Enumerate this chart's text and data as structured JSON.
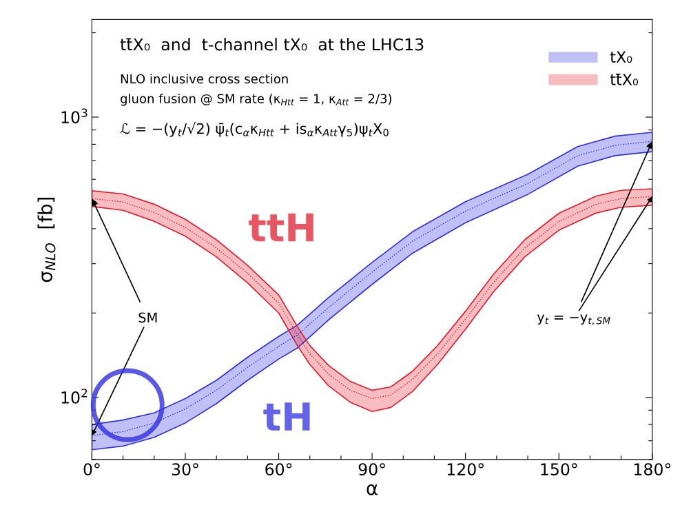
{
  "chart_data": {
    "type": "line",
    "title": "tt̄X₀  and  t-channel tX₀  at the LHC13",
    "xlabel": "α",
    "ylabel": "σ$_{NLO}$  [fb]",
    "series": [
      {
        "name": "tX₀",
        "color": "#3030e0",
        "line_style": "dotted",
        "x": [
          0,
          10,
          20,
          30,
          40,
          50,
          60,
          66,
          76,
          90,
          103,
          120,
          140,
          156,
          168,
          180
        ],
        "values": [
          73,
          75.5,
          81,
          91,
          106,
          128,
          152,
          167,
          209,
          280,
          361,
          462,
          580,
          728,
          793,
          820
        ],
        "upper": [
          80,
          83,
          88,
          99,
          115,
          139,
          165,
          181,
          227,
          303,
          390,
          499,
          625,
          785,
          855,
          883
        ],
        "lower": [
          65,
          67,
          72,
          81,
          95,
          115,
          137,
          150,
          189,
          253,
          327,
          420,
          530,
          668,
          729,
          753
        ]
      },
      {
        "name": "tt̄X₀",
        "color": "#e02030",
        "line_style": "dotted",
        "x": [
          0,
          10,
          20,
          30,
          40,
          50,
          60,
          66,
          70,
          76,
          83,
          90,
          96,
          103,
          111,
          120,
          129,
          139,
          150,
          162,
          170,
          180
        ],
        "values": [
          512,
          498,
          457,
          404,
          341,
          277,
          217,
          167,
          143,
          121,
          106,
          99,
          102,
          116,
          143,
          190,
          257,
          341,
          424,
          489,
          512,
          521
        ],
        "upper": [
          546,
          532,
          489,
          432,
          365,
          296,
          232,
          179,
          153,
          130,
          114,
          106,
          109,
          124,
          153,
          203,
          275,
          365,
          454,
          523,
          548,
          555
        ],
        "lower": [
          480,
          465,
          425,
          376,
          317,
          256,
          200,
          153,
          131,
          110,
          96,
          89,
          92,
          105,
          131,
          175,
          238,
          317,
          395,
          455,
          477,
          485
        ]
      }
    ],
    "annotations": [
      "NLO inclusive cross section",
      "gluon fusion @ SM rate (κ$_{Htt}$ = 1, κ$_{Att}$ = 2/3)",
      "ℒ = −(y$_{t}$/√2) ψ̄$_{t}$(c$_{α}$κ$_{Htt}$ + is$_{α}$κ$_{Att}$γ$_{5}$)ψ$_{t}$X$_{0}$",
      "ttH",
      "tH",
      {
        "text": "SM",
        "x": 0,
        "y": 512
      },
      {
        "text": "y$_{t}$ = −y$_{t,SM}$",
        "x": 180,
        "y": 820
      }
    ],
    "log": "y",
    "xlim": [
      0,
      180
    ],
    "ylim": [
      60,
      2230
    ],
    "xticks": [
      {
        "value": 0,
        "label": "0°"
      },
      {
        "value": 10,
        "label": null
      },
      {
        "value": 20,
        "label": null
      },
      {
        "value": 30,
        "label": "30°"
      },
      {
        "value": 40,
        "label": null
      },
      {
        "value": 50,
        "label": null
      },
      {
        "value": 60,
        "label": "60°"
      },
      {
        "value": 70,
        "label": null
      },
      {
        "value": 80,
        "label": null
      },
      {
        "value": 90,
        "label": "90°"
      },
      {
        "value": 100,
        "label": null
      },
      {
        "value": 110,
        "label": null
      },
      {
        "value": 120,
        "label": "120°"
      },
      {
        "value": 130,
        "label": null
      },
      {
        "value": 140,
        "label": null
      },
      {
        "value": 150,
        "label": "150°"
      },
      {
        "value": 160,
        "label": null
      },
      {
        "value": 170,
        "label": null
      },
      {
        "value": 180,
        "label": "180°"
      }
    ],
    "yticks": [
      {
        "value": 60,
        "label": null
      },
      {
        "value": 70,
        "label": null
      },
      {
        "value": 80,
        "label": null
      },
      {
        "value": 90,
        "label": null
      },
      {
        "value": 100,
        "label": "10$^{2}$"
      },
      {
        "value": 200,
        "label": null
      },
      {
        "value": 300,
        "label": null
      },
      {
        "value": 400,
        "label": null
      },
      {
        "value": 500,
        "label": null
      },
      {
        "value": 600,
        "label": null
      },
      {
        "value": 700,
        "label": null
      },
      {
        "value": 800,
        "label": null
      },
      {
        "value": 900,
        "label": null
      },
      {
        "value": 1000,
        "label": "10$^{3}$"
      },
      {
        "value": 2000,
        "label": null
      }
    ],
    "grid": false,
    "legend": "top right",
    "marker": "none"
  }
}
